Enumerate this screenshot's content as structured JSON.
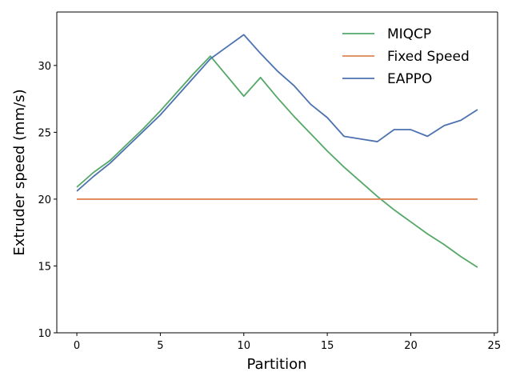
{
  "chart_data": {
    "type": "line",
    "title": "",
    "xlabel": "Partition",
    "ylabel": "Extruder speed (mm/s)",
    "xlim": [
      -1.2,
      25.2
    ],
    "ylim": [
      10,
      34
    ],
    "xticks": [
      0,
      5,
      10,
      15,
      20,
      25
    ],
    "yticks": [
      10,
      15,
      20,
      25,
      30
    ],
    "grid": false,
    "legend": "top-right",
    "x": [
      0,
      1,
      2,
      3,
      4,
      5,
      6,
      7,
      8,
      9,
      10,
      11,
      12,
      13,
      14,
      15,
      16,
      17,
      18,
      19,
      20,
      21,
      22,
      23,
      24
    ],
    "series": [
      {
        "name": "MIQCP",
        "color": "#55a868",
        "values": [
          20.9,
          22.0,
          22.9,
          24.1,
          25.3,
          26.6,
          28.0,
          29.4,
          30.7,
          29.2,
          27.7,
          29.1,
          27.6,
          26.2,
          24.9,
          23.6,
          22.4,
          21.3,
          20.2,
          19.2,
          18.3,
          17.4,
          16.6,
          15.7,
          14.9
        ]
      },
      {
        "name": "Fixed Speed",
        "color": "#dd8452",
        "values": [
          20,
          20,
          20,
          20,
          20,
          20,
          20,
          20,
          20,
          20,
          20,
          20,
          20,
          20,
          20,
          20,
          20,
          20,
          20,
          20,
          20,
          20,
          20,
          20,
          20
        ]
      },
      {
        "name": "EAPPO",
        "color": "#4c72b0",
        "values": [
          20.6,
          21.7,
          22.7,
          23.9,
          25.1,
          26.3,
          27.7,
          29.1,
          30.5,
          31.4,
          32.3,
          30.9,
          29.6,
          28.5,
          27.1,
          26.1,
          24.7,
          24.5,
          24.3,
          25.2,
          25.2,
          24.7,
          25.5,
          25.9,
          26.7
        ]
      }
    ]
  }
}
